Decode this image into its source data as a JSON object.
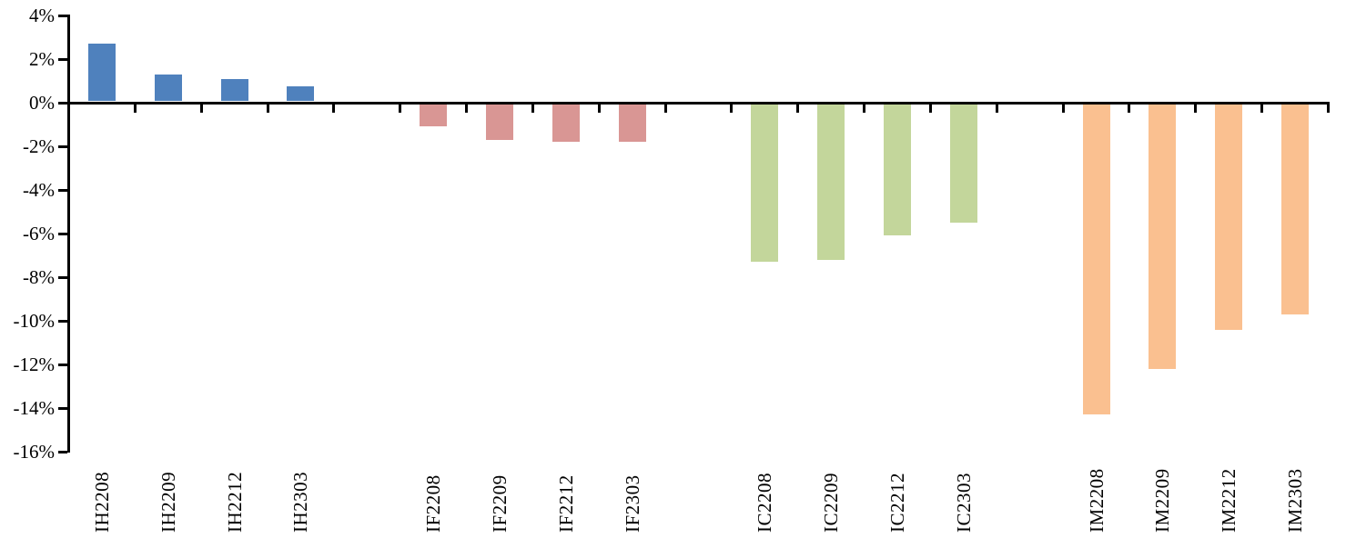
{
  "chart_data": {
    "type": "bar",
    "title": "",
    "xlabel": "",
    "ylabel": "",
    "ylim": [
      -16,
      4
    ],
    "ytick_step": 2,
    "grid": false,
    "legend": "none",
    "background_color": "#FFFFFF",
    "axis_color": "#000000",
    "y_ticks": [
      {
        "label": "4%",
        "value": 4
      },
      {
        "label": "2%",
        "value": 2
      },
      {
        "label": "0%",
        "value": 0
      },
      {
        "label": "-2%",
        "value": -2
      },
      {
        "label": "-4%",
        "value": -4
      },
      {
        "label": "-6%",
        "value": -6
      },
      {
        "label": "-8%",
        "value": -8
      },
      {
        "label": "-10%",
        "value": -10
      },
      {
        "label": "-12%",
        "value": -12
      },
      {
        "label": "-14%",
        "value": -14
      },
      {
        "label": "-16%",
        "value": -16
      }
    ],
    "groups": [
      {
        "name": "IH",
        "color": "#4F81BD",
        "categories": [
          "IH2208",
          "IH2209",
          "IH2212",
          "IH2303"
        ],
        "values": [
          2.7,
          1.3,
          1.1,
          0.75
        ]
      },
      {
        "name": "IF",
        "color": "#D99694",
        "categories": [
          "IF2208",
          "IF2209",
          "IF2212",
          "IF2303"
        ],
        "values": [
          -1.1,
          -1.7,
          -1.8,
          -1.8
        ]
      },
      {
        "name": "IC",
        "color": "#C3D69B",
        "categories": [
          "IC2208",
          "IC2209",
          "IC2212",
          "IC2303"
        ],
        "values": [
          -7.3,
          -7.2,
          -6.1,
          -5.5
        ]
      },
      {
        "name": "IM",
        "color": "#FAC090",
        "categories": [
          "IM2208",
          "IM2209",
          "IM2212",
          "IM2303"
        ],
        "values": [
          -14.3,
          -12.2,
          -10.4,
          -9.7
        ]
      }
    ]
  }
}
